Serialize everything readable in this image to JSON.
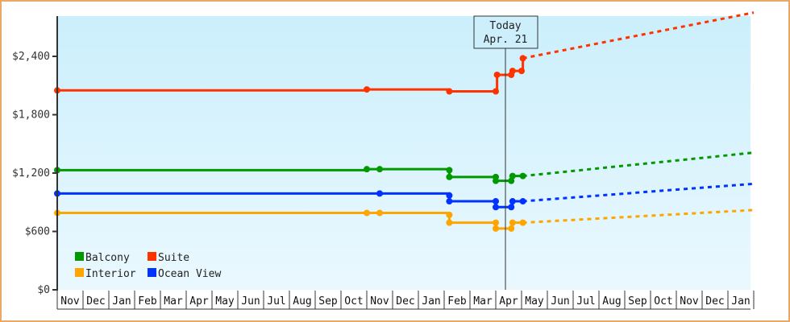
{
  "chart_data": {
    "type": "line",
    "title": "",
    "xlabel": "",
    "ylabel": "",
    "ylim": [
      0,
      2850
    ],
    "yticks": [
      "$0",
      "$600",
      "$1,200",
      "$1,800",
      "$2,400"
    ],
    "ytick_values": [
      0,
      600,
      1200,
      1800,
      2400
    ],
    "x_months": [
      "Nov",
      "Dec",
      "Jan",
      "Feb",
      "Mar",
      "Apr",
      "May",
      "Jun",
      "Jul",
      "Aug",
      "Sep",
      "Oct",
      "Nov",
      "Dec",
      "Jan",
      "Feb",
      "Mar",
      "Apr",
      "May",
      "Jun",
      "Jul",
      "Aug",
      "Sep",
      "Oct",
      "Nov",
      "Dec",
      "Jan"
    ],
    "today_marker": {
      "line1": "Today",
      "line2": "Apr. 21"
    },
    "legend": [
      {
        "name": "Balcony",
        "color": "#009900"
      },
      {
        "name": "Suite",
        "color": "#ff3300"
      },
      {
        "name": "Interior",
        "color": "#ffa500"
      },
      {
        "name": "Ocean View",
        "color": "#0033ff"
      }
    ],
    "series": [
      {
        "name": "Suite",
        "color": "#ff3300",
        "historical": [
          [
            0,
            2050
          ],
          [
            12,
            2060
          ],
          [
            15.2,
            2040
          ],
          [
            17,
            2040
          ],
          [
            17.05,
            2210
          ],
          [
            17.6,
            2210
          ],
          [
            17.65,
            2250
          ],
          [
            18,
            2250
          ],
          [
            18.05,
            2380
          ]
        ],
        "forecast": [
          [
            18.05,
            2380
          ],
          [
            27,
            2850
          ]
        ]
      },
      {
        "name": "Balcony",
        "color": "#009900",
        "historical": [
          [
            0,
            1230
          ],
          [
            12,
            1240
          ],
          [
            12.5,
            1240
          ],
          [
            15.2,
            1230
          ],
          [
            15.2,
            1160
          ],
          [
            17,
            1160
          ],
          [
            17,
            1120
          ],
          [
            17.6,
            1120
          ],
          [
            17.65,
            1170
          ],
          [
            18.05,
            1170
          ]
        ],
        "forecast": [
          [
            18.05,
            1170
          ],
          [
            27,
            1410
          ]
        ]
      },
      {
        "name": "Ocean View",
        "color": "#0033ff",
        "historical": [
          [
            0,
            990
          ],
          [
            12.5,
            990
          ],
          [
            15.2,
            970
          ],
          [
            15.2,
            910
          ],
          [
            17,
            910
          ],
          [
            17,
            850
          ],
          [
            17.6,
            850
          ],
          [
            17.65,
            910
          ],
          [
            18.05,
            910
          ]
        ],
        "forecast": [
          [
            18.05,
            910
          ],
          [
            27,
            1090
          ]
        ]
      },
      {
        "name": "Interior",
        "color": "#ffa500",
        "historical": [
          [
            0,
            790
          ],
          [
            12,
            790
          ],
          [
            12.5,
            790
          ],
          [
            15.2,
            770
          ],
          [
            15.2,
            690
          ],
          [
            17,
            690
          ],
          [
            17,
            630
          ],
          [
            17.6,
            630
          ],
          [
            17.65,
            690
          ],
          [
            18.05,
            690
          ]
        ],
        "forecast": [
          [
            18.05,
            690
          ],
          [
            27,
            820
          ]
        ]
      }
    ]
  }
}
